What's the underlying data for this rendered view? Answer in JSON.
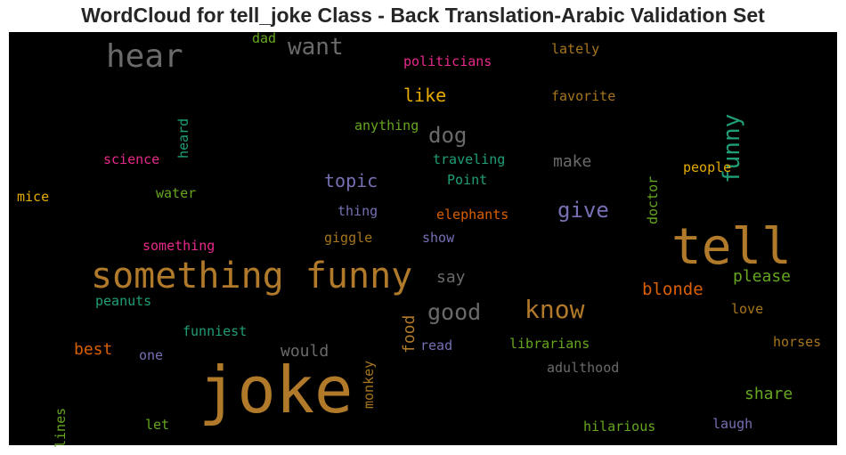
{
  "chart_data": {
    "type": "wordcloud",
    "title": "WordCloud for tell_joke Class - Back Translation-Arabic Validation Set",
    "background": "#000000",
    "words": [
      {
        "text": "joke",
        "color": "#b07a2a"
      },
      {
        "text": "tell",
        "color": "#b07a2a"
      },
      {
        "text": "something funny",
        "color": "#b07a2a"
      },
      {
        "text": "hear",
        "color": "#6a6a6a"
      },
      {
        "text": "know",
        "color": "#b07a2a"
      },
      {
        "text": "good",
        "color": "#6a6a6a"
      },
      {
        "text": "want",
        "color": "#6a6a6a"
      },
      {
        "text": "funny",
        "color": "#1f9e77"
      },
      {
        "text": "give",
        "color": "#7570b3"
      },
      {
        "text": "dog",
        "color": "#6a6a6a"
      },
      {
        "text": "topic",
        "color": "#7570b3"
      },
      {
        "text": "like",
        "color": "#e6ab02"
      },
      {
        "text": "blonde",
        "color": "#d95f02"
      },
      {
        "text": "please",
        "color": "#66a61e"
      },
      {
        "text": "share",
        "color": "#66a61e"
      },
      {
        "text": "best",
        "color": "#d95f02"
      },
      {
        "text": "would",
        "color": "#6a6a6a"
      },
      {
        "text": "say",
        "color": "#6a6a6a"
      },
      {
        "text": "food",
        "color": "#b07a2a"
      },
      {
        "text": "make",
        "color": "#6a6a6a"
      },
      {
        "text": "politicians",
        "color": "#e7298a"
      },
      {
        "text": "lately",
        "color": "#a6761d"
      },
      {
        "text": "favorite",
        "color": "#a6761d"
      },
      {
        "text": "heard",
        "color": "#1f9e77"
      },
      {
        "text": "dad",
        "color": "#66a61e"
      },
      {
        "text": "anything",
        "color": "#66a61e"
      },
      {
        "text": "traveling",
        "color": "#1f9e77"
      },
      {
        "text": "Point",
        "color": "#1f9e77"
      },
      {
        "text": "doctor",
        "color": "#66a61e"
      },
      {
        "text": "people",
        "color": "#e6ab02"
      },
      {
        "text": "science",
        "color": "#e7298a"
      },
      {
        "text": "water",
        "color": "#66a61e"
      },
      {
        "text": "mice",
        "color": "#e6ab02"
      },
      {
        "text": "thing",
        "color": "#7570b3"
      },
      {
        "text": "elephants",
        "color": "#d95f02"
      },
      {
        "text": "something",
        "color": "#e7298a"
      },
      {
        "text": "giggle",
        "color": "#a6761d"
      },
      {
        "text": "show",
        "color": "#7570b3"
      },
      {
        "text": "peanuts",
        "color": "#1f9e77"
      },
      {
        "text": "funniest",
        "color": "#1f9e77"
      },
      {
        "text": "monkey",
        "color": "#a6761d"
      },
      {
        "text": "one",
        "color": "#7570b3"
      },
      {
        "text": "read",
        "color": "#7570b3"
      },
      {
        "text": "librarians",
        "color": "#66a61e"
      },
      {
        "text": "love",
        "color": "#a6761d"
      },
      {
        "text": "horses",
        "color": "#a6761d"
      },
      {
        "text": "adulthood",
        "color": "#6a6a6a"
      },
      {
        "text": "lines",
        "color": "#66a61e"
      },
      {
        "text": "let",
        "color": "#66a61e"
      },
      {
        "text": "hilarious",
        "color": "#66a61e"
      },
      {
        "text": "laugh",
        "color": "#7570b3"
      }
    ]
  }
}
